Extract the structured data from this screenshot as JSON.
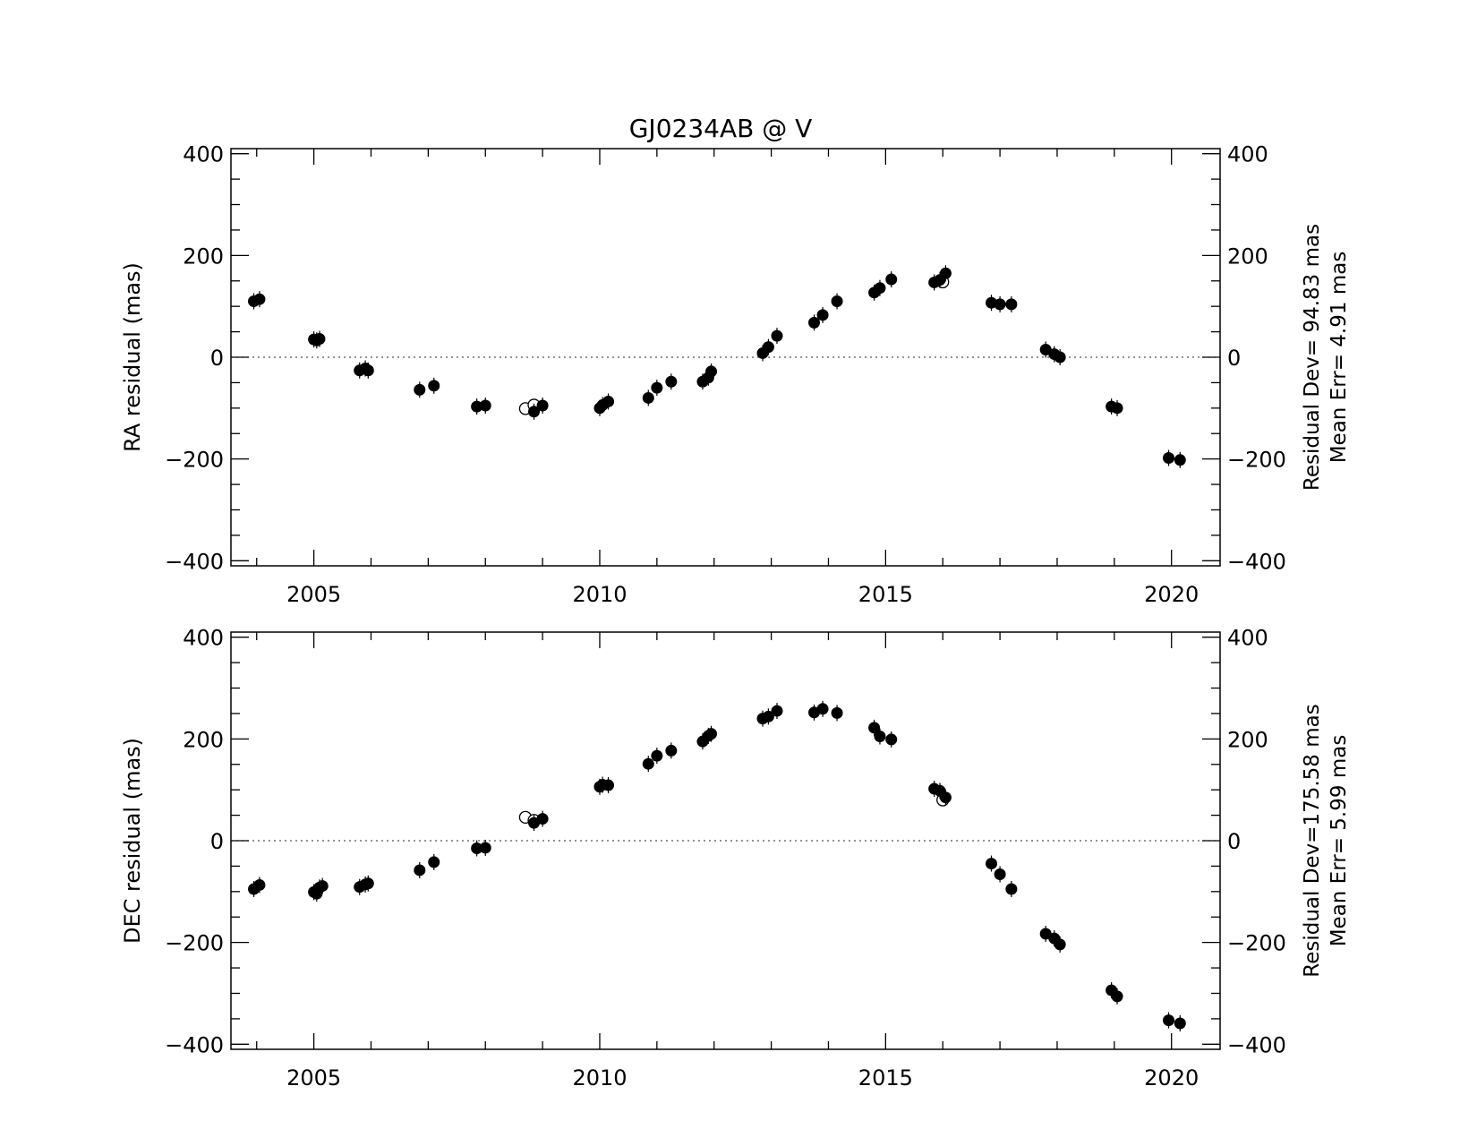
{
  "figure_title": "GJ0234AB @ V",
  "colors": {
    "foreground": "#000000",
    "background": "#ffffff",
    "zero_line": "#555555"
  },
  "chart_data": [
    {
      "type": "scatter",
      "id": "ra",
      "ylabel": "RA residual (mas)",
      "xlim": [
        2003.55,
        2020.85
      ],
      "ylim": [
        -410,
        410
      ],
      "xticks": [
        2005,
        2010,
        2015,
        2020
      ],
      "yticks": [
        -400,
        -200,
        0,
        200,
        400
      ],
      "zero_line": true,
      "stats": [
        "Residual Dev= 94.83 mas",
        "Mean  Err= 4.91 mas"
      ],
      "filled": [
        [
          2003.95,
          110
        ],
        [
          2004.05,
          114
        ],
        [
          2005.0,
          35
        ],
        [
          2005.05,
          33
        ],
        [
          2005.1,
          36
        ],
        [
          2005.8,
          -26
        ],
        [
          2005.9,
          -22
        ],
        [
          2005.95,
          -26
        ],
        [
          2006.85,
          -64
        ],
        [
          2007.1,
          -56
        ],
        [
          2007.85,
          -97
        ],
        [
          2008.0,
          -95
        ],
        [
          2008.85,
          -107
        ],
        [
          2009.0,
          -95
        ],
        [
          2010.0,
          -100
        ],
        [
          2010.05,
          -94
        ],
        [
          2010.15,
          -87
        ],
        [
          2010.85,
          -80
        ],
        [
          2011.0,
          -60
        ],
        [
          2011.25,
          -48
        ],
        [
          2011.8,
          -48
        ],
        [
          2011.9,
          -40
        ],
        [
          2011.95,
          -28
        ],
        [
          2012.85,
          8
        ],
        [
          2012.95,
          20
        ],
        [
          2013.1,
          42
        ],
        [
          2013.75,
          68
        ],
        [
          2013.9,
          83
        ],
        [
          2014.15,
          110
        ],
        [
          2014.8,
          127
        ],
        [
          2014.9,
          136
        ],
        [
          2015.1,
          153
        ],
        [
          2015.85,
          147
        ],
        [
          2015.95,
          152
        ],
        [
          2016.05,
          165
        ],
        [
          2016.85,
          107
        ],
        [
          2017.0,
          104
        ],
        [
          2017.2,
          104
        ],
        [
          2017.8,
          15
        ],
        [
          2017.95,
          6
        ],
        [
          2018.05,
          0
        ],
        [
          2018.95,
          -97
        ],
        [
          2019.05,
          -100
        ],
        [
          2019.95,
          -198
        ],
        [
          2020.15,
          -202
        ]
      ],
      "open": [
        [
          2008.7,
          -101
        ],
        [
          2008.85,
          -94
        ],
        [
          2016.0,
          148
        ]
      ]
    },
    {
      "type": "scatter",
      "id": "dec",
      "ylabel": "DEC residual (mas)",
      "xlim": [
        2003.55,
        2020.85
      ],
      "ylim": [
        -410,
        410
      ],
      "xticks": [
        2005,
        2010,
        2015,
        2020
      ],
      "yticks": [
        -400,
        -200,
        0,
        200,
        400
      ],
      "zero_line": true,
      "stats": [
        "Residual Dev=175.58 mas",
        "Mean  Err= 5.99 mas"
      ],
      "filled": [
        [
          2003.95,
          -95
        ],
        [
          2004.05,
          -87
        ],
        [
          2005.0,
          -101
        ],
        [
          2005.05,
          -104
        ],
        [
          2005.1,
          -92
        ],
        [
          2005.15,
          -89
        ],
        [
          2005.8,
          -91
        ],
        [
          2005.9,
          -86
        ],
        [
          2005.95,
          -84
        ],
        [
          2006.85,
          -58
        ],
        [
          2007.1,
          -42
        ],
        [
          2007.85,
          -15
        ],
        [
          2008.0,
          -14
        ],
        [
          2008.85,
          35
        ],
        [
          2009.0,
          43
        ],
        [
          2010.0,
          106
        ],
        [
          2010.05,
          110
        ],
        [
          2010.15,
          109
        ],
        [
          2010.85,
          151
        ],
        [
          2011.0,
          167
        ],
        [
          2011.25,
          177
        ],
        [
          2011.8,
          195
        ],
        [
          2011.9,
          206
        ],
        [
          2011.95,
          210
        ],
        [
          2012.85,
          240
        ],
        [
          2012.95,
          244
        ],
        [
          2013.1,
          255
        ],
        [
          2013.75,
          252
        ],
        [
          2013.9,
          259
        ],
        [
          2014.15,
          251
        ],
        [
          2014.8,
          222
        ],
        [
          2014.9,
          205
        ],
        [
          2015.1,
          199
        ],
        [
          2015.85,
          102
        ],
        [
          2015.95,
          98
        ],
        [
          2016.05,
          85
        ],
        [
          2016.85,
          -45
        ],
        [
          2017.0,
          -66
        ],
        [
          2017.2,
          -95
        ],
        [
          2017.8,
          -183
        ],
        [
          2017.95,
          -192
        ],
        [
          2018.05,
          -204
        ],
        [
          2018.95,
          -294
        ],
        [
          2019.05,
          -306
        ],
        [
          2019.95,
          -353
        ],
        [
          2020.15,
          -359
        ]
      ],
      "open": [
        [
          2008.7,
          46
        ],
        [
          2008.85,
          40
        ],
        [
          2016.0,
          80
        ]
      ]
    }
  ]
}
